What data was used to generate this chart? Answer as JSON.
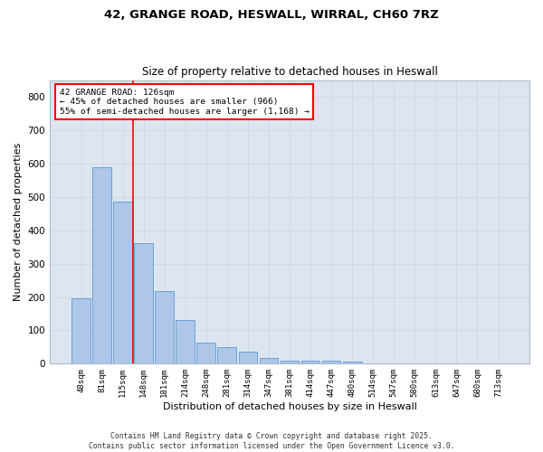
{
  "title_line1": "42, GRANGE ROAD, HESWALL, WIRRAL, CH60 7RZ",
  "title_line2": "Size of property relative to detached houses in Heswall",
  "xlabel": "Distribution of detached houses by size in Heswall",
  "ylabel": "Number of detached properties",
  "categories": [
    "48sqm",
    "81sqm",
    "115sqm",
    "148sqm",
    "181sqm",
    "214sqm",
    "248sqm",
    "281sqm",
    "314sqm",
    "347sqm",
    "381sqm",
    "414sqm",
    "447sqm",
    "480sqm",
    "514sqm",
    "547sqm",
    "580sqm",
    "613sqm",
    "647sqm",
    "680sqm",
    "713sqm"
  ],
  "values": [
    196,
    588,
    487,
    360,
    217,
    130,
    63,
    50,
    35,
    17,
    10,
    10,
    8,
    5,
    0,
    0,
    0,
    0,
    0,
    0,
    0
  ],
  "bar_color": "#aec6e8",
  "bar_edge_color": "#5b9bd5",
  "grid_color": "#d0d8e8",
  "background_color": "#dde6f0",
  "annotation_text": "42 GRANGE ROAD: 126sqm\n← 45% of detached houses are smaller (966)\n55% of semi-detached houses are larger (1,168) →",
  "vline_position": 2.5,
  "ylim": [
    0,
    850
  ],
  "yticks": [
    0,
    100,
    200,
    300,
    400,
    500,
    600,
    700,
    800
  ],
  "footer_line1": "Contains HM Land Registry data © Crown copyright and database right 2025.",
  "footer_line2": "Contains public sector information licensed under the Open Government Licence v3.0."
}
